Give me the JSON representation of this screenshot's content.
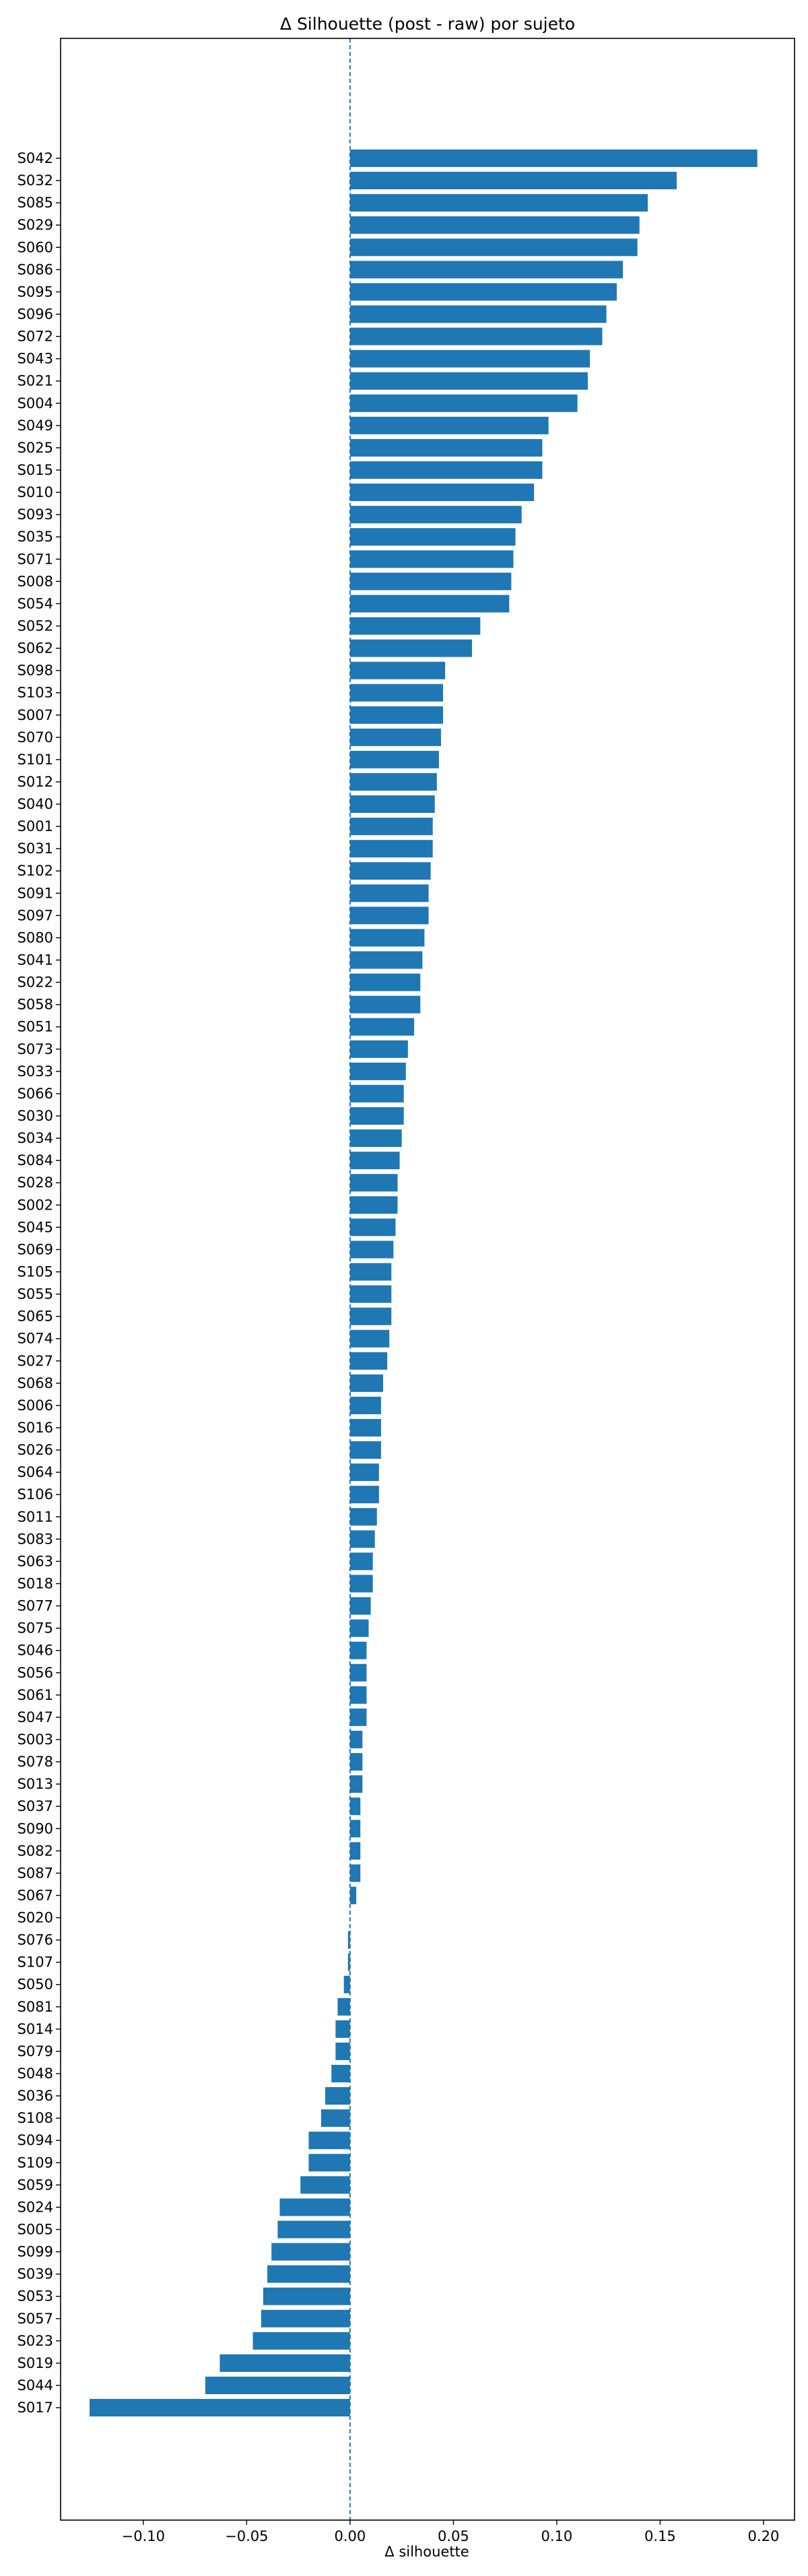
{
  "chart_data": {
    "type": "bar",
    "orientation": "horizontal",
    "title": "Δ Silhouette (post - raw) por sujeto",
    "xlabel": "Δ silhouette",
    "ylabel": "",
    "xlim": [
      -0.14,
      0.215
    ],
    "x_ticks": [
      {
        "value": -0.1,
        "label": "−0.10"
      },
      {
        "value": -0.05,
        "label": "−0.05"
      },
      {
        "value": 0.0,
        "label": "0.00"
      },
      {
        "value": 0.05,
        "label": "0.05"
      },
      {
        "value": 0.1,
        "label": "0.10"
      },
      {
        "value": 0.15,
        "label": "0.15"
      },
      {
        "value": 0.2,
        "label": "0.20"
      }
    ],
    "reference_line": {
      "value": 0,
      "style": "dashed"
    },
    "bar_color": "#1f77b4",
    "reference_color": "#1f77b4",
    "categories": [
      "S042",
      "S032",
      "S085",
      "S029",
      "S060",
      "S086",
      "S095",
      "S096",
      "S072",
      "S043",
      "S021",
      "S004",
      "S049",
      "S025",
      "S015",
      "S010",
      "S093",
      "S035",
      "S071",
      "S008",
      "S054",
      "S052",
      "S062",
      "S098",
      "S103",
      "S007",
      "S070",
      "S101",
      "S012",
      "S040",
      "S001",
      "S031",
      "S102",
      "S091",
      "S097",
      "S080",
      "S041",
      "S022",
      "S058",
      "S051",
      "S073",
      "S033",
      "S066",
      "S030",
      "S034",
      "S084",
      "S028",
      "S002",
      "S045",
      "S069",
      "S105",
      "S055",
      "S065",
      "S074",
      "S027",
      "S068",
      "S006",
      "S016",
      "S026",
      "S064",
      "S106",
      "S011",
      "S083",
      "S063",
      "S018",
      "S077",
      "S075",
      "S046",
      "S056",
      "S061",
      "S047",
      "S003",
      "S078",
      "S013",
      "S037",
      "S090",
      "S082",
      "S087",
      "S067",
      "S020",
      "S076",
      "S107",
      "S050",
      "S081",
      "S014",
      "S079",
      "S048",
      "S036",
      "S108",
      "S094",
      "S109",
      "S059",
      "S024",
      "S005",
      "S099",
      "S039",
      "S053",
      "S057",
      "S023",
      "S019",
      "S044",
      "S017"
    ],
    "values": [
      0.197,
      0.158,
      0.144,
      0.14,
      0.139,
      0.132,
      0.129,
      0.124,
      0.122,
      0.116,
      0.115,
      0.11,
      0.096,
      0.093,
      0.093,
      0.089,
      0.083,
      0.08,
      0.079,
      0.078,
      0.077,
      0.063,
      0.059,
      0.046,
      0.045,
      0.045,
      0.044,
      0.043,
      0.042,
      0.041,
      0.04,
      0.04,
      0.039,
      0.038,
      0.038,
      0.036,
      0.035,
      0.034,
      0.034,
      0.031,
      0.028,
      0.027,
      0.026,
      0.026,
      0.025,
      0.024,
      0.023,
      0.023,
      0.022,
      0.021,
      0.02,
      0.02,
      0.02,
      0.019,
      0.018,
      0.016,
      0.015,
      0.015,
      0.015,
      0.014,
      0.014,
      0.013,
      0.012,
      0.011,
      0.011,
      0.01,
      0.009,
      0.008,
      0.008,
      0.008,
      0.008,
      0.006,
      0.006,
      0.006,
      0.005,
      0.005,
      0.005,
      0.005,
      0.003,
      0.0,
      -0.001,
      -0.001,
      -0.003,
      -0.006,
      -0.007,
      -0.007,
      -0.009,
      -0.012,
      -0.014,
      -0.02,
      -0.02,
      -0.024,
      -0.034,
      -0.035,
      -0.038,
      -0.04,
      -0.042,
      -0.043,
      -0.047,
      -0.063,
      -0.07,
      -0.126
    ]
  }
}
